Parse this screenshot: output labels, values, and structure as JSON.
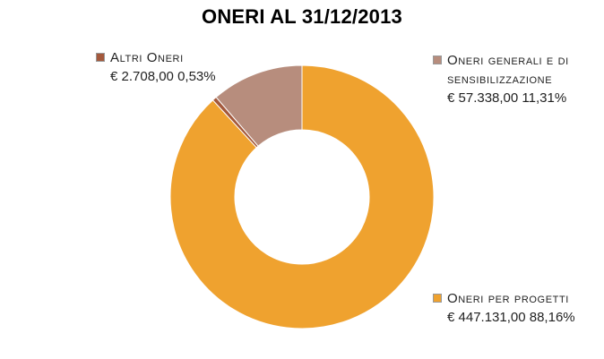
{
  "chart_data": {
    "type": "pie",
    "variant": "donut",
    "title": "ONERI AL 31/12/2013",
    "slices": [
      {
        "name": "Oneri per progetti",
        "value": 447131.0,
        "percent": 88.16,
        "value_label": "€ 447.131,00  88,16%",
        "color": "#efa22f"
      },
      {
        "name": "Altri Oneri",
        "value": 2708.0,
        "percent": 0.53,
        "value_label": "€ 2.708,00  0,53%",
        "color": "#a4593c"
      },
      {
        "name": "Oneri generali e di sensibilizzazione",
        "value": 57338.0,
        "percent": 11.31,
        "value_label": "€ 57.338,00 11,31%",
        "color": "#b78d7d"
      }
    ]
  }
}
